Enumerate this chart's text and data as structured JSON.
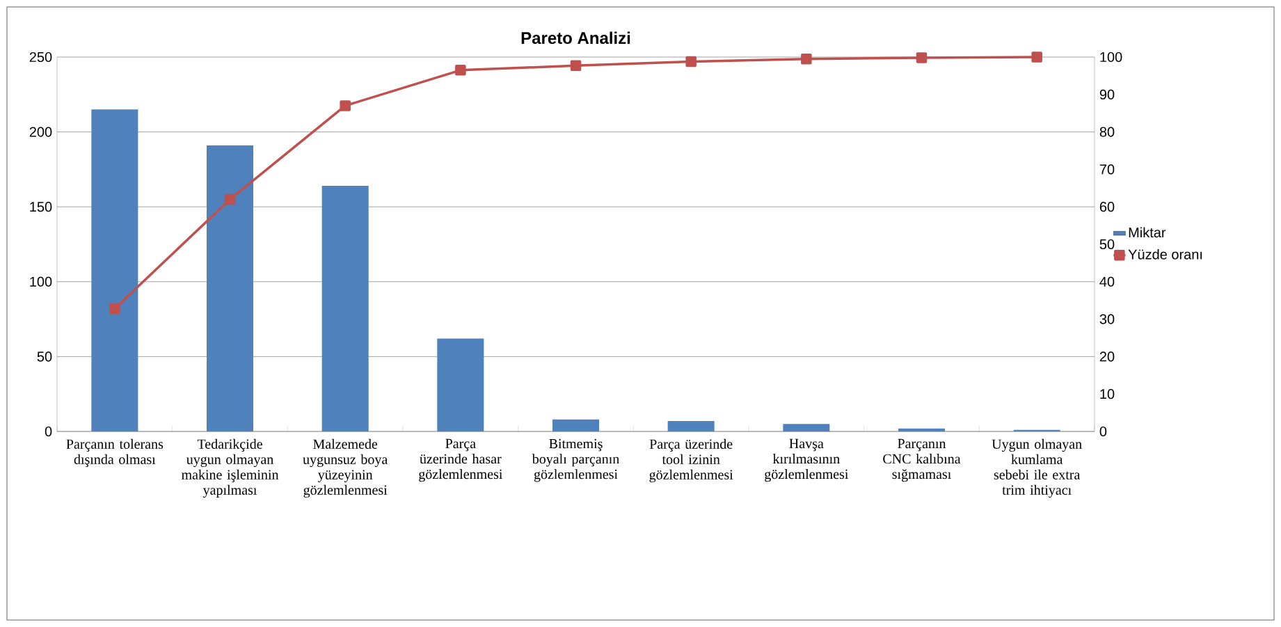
{
  "chart_data": {
    "type": "bar",
    "title": "Pareto Analizi",
    "categories": [
      "Parçanın tolerans dışında olması",
      "Tedarikçide uygun olmayan makine işleminin yapılması",
      "Malzemede uygunsuz boya yüzeyinin gözlemlenmesi",
      "Parça üzerinde hasar gözlemlenmesi",
      "Bitmemiş boyalı parçanın gözlemlenmesi",
      "Parça üzerinde tool izinin gözlemlenmesi",
      "Havşa kırılmasının gözlemlenmesi",
      "Parçanın CNC kalıbına sığmaması",
      "Uygun olmayan kumlama sebebi ile extra trim ihtiyacı"
    ],
    "series": [
      {
        "name": "Miktar",
        "color": "#4f81bd",
        "values": [
          215,
          191,
          164,
          62,
          8,
          7,
          5,
          2,
          1
        ]
      },
      {
        "name": "Yüzde oranı",
        "type": "line",
        "axis": "y2",
        "color": "#c0504d",
        "values": [
          32.8,
          62.0,
          87.0,
          96.5,
          97.7,
          98.8,
          99.5,
          99.8,
          100
        ]
      }
    ],
    "marker": "square",
    "ylim": [
      0,
      250
    ],
    "yticks": [
      0,
      50,
      100,
      150,
      200,
      250
    ],
    "y2lim": [
      0,
      100
    ],
    "y2ticks": [
      0,
      10,
      20,
      30,
      40,
      50,
      60,
      70,
      80,
      90,
      100
    ],
    "grid": "y",
    "legend": "right"
  }
}
